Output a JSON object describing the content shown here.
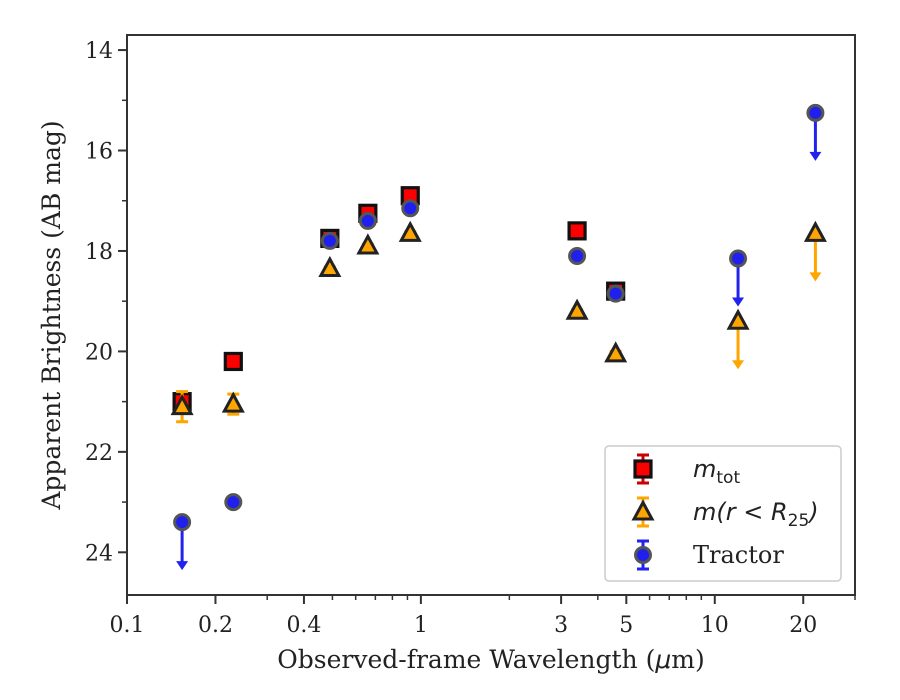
{
  "chart_data": {
    "type": "scatter",
    "xlabel_parts": [
      "Observed-frame Wavelength (",
      "μ",
      "m)"
    ],
    "ylabel": "Apparent Brightness (AB mag)",
    "xscale": "log",
    "xlim": [
      0.1,
      30
    ],
    "ylim": [
      24.85,
      13.7
    ],
    "y_inverted": true,
    "x_ticks": [
      0.1,
      0.2,
      0.4,
      1,
      3,
      5,
      10,
      20
    ],
    "x_tick_labels": [
      "0.1",
      "0.2",
      "0.4",
      "1",
      "3",
      "5",
      "10",
      "20"
    ],
    "y_ticks": [
      14,
      16,
      18,
      20,
      22,
      24
    ],
    "y_tick_labels": [
      "14",
      "16",
      "18",
      "20",
      "22",
      "24"
    ],
    "grid": false,
    "legend_position": "lower right",
    "series": [
      {
        "key": "mtot",
        "legend": {
          "base": "m",
          "sub": "tot"
        },
        "marker": "square",
        "color": "#ff0000",
        "err_color": "#cc0000",
        "points": [
          {
            "x": 0.154,
            "y": 21.0,
            "err": 0.15
          },
          {
            "x": 0.23,
            "y": 20.2,
            "err": 0.05
          },
          {
            "x": 0.49,
            "y": 17.75,
            "err": 0.03
          },
          {
            "x": 0.66,
            "y": 17.25,
            "err": 0.03
          },
          {
            "x": 0.92,
            "y": 16.9,
            "err": 0.03
          },
          {
            "x": 3.4,
            "y": 17.6,
            "err": 0.03
          },
          {
            "x": 4.6,
            "y": 18.8,
            "err": 0.03
          }
        ]
      },
      {
        "key": "mr25",
        "legend": {
          "base": "m(r < R",
          "sub": "25",
          "tail": ")"
        },
        "marker": "triangle",
        "color": "#ffa500",
        "err_color": "#ffa500",
        "points": [
          {
            "x": 0.154,
            "y": 21.1,
            "err": 0.3
          },
          {
            "x": 0.23,
            "y": 21.05,
            "err": 0.2
          },
          {
            "x": 0.49,
            "y": 18.35,
            "err": 0.03
          },
          {
            "x": 0.66,
            "y": 17.9,
            "err": 0.03
          },
          {
            "x": 0.92,
            "y": 17.65,
            "err": 0.03
          },
          {
            "x": 3.4,
            "y": 19.2,
            "err": 0.03
          },
          {
            "x": 4.6,
            "y": 20.05,
            "err": 0.05
          },
          {
            "x": 12.0,
            "y": 19.4,
            "upper_limit": true
          },
          {
            "x": 22.0,
            "y": 17.65,
            "upper_limit": true
          }
        ]
      },
      {
        "key": "tractor",
        "legend": {
          "base": "Tractor"
        },
        "marker": "circle",
        "color": "#2020ee",
        "err_color": "#2222ee",
        "points": [
          {
            "x": 0.154,
            "y": 23.4,
            "upper_limit": true
          },
          {
            "x": 0.23,
            "y": 23.0,
            "err": 0.03
          },
          {
            "x": 0.49,
            "y": 17.8,
            "err": 0.03
          },
          {
            "x": 0.66,
            "y": 17.4,
            "err": 0.03
          },
          {
            "x": 0.92,
            "y": 17.15,
            "err": 0.03
          },
          {
            "x": 3.4,
            "y": 18.1,
            "err": 0.03
          },
          {
            "x": 4.6,
            "y": 18.85,
            "err": 0.03
          },
          {
            "x": 12.0,
            "y": 18.15,
            "upper_limit": true
          },
          {
            "x": 22.0,
            "y": 15.25,
            "upper_limit": true
          }
        ]
      }
    ]
  }
}
